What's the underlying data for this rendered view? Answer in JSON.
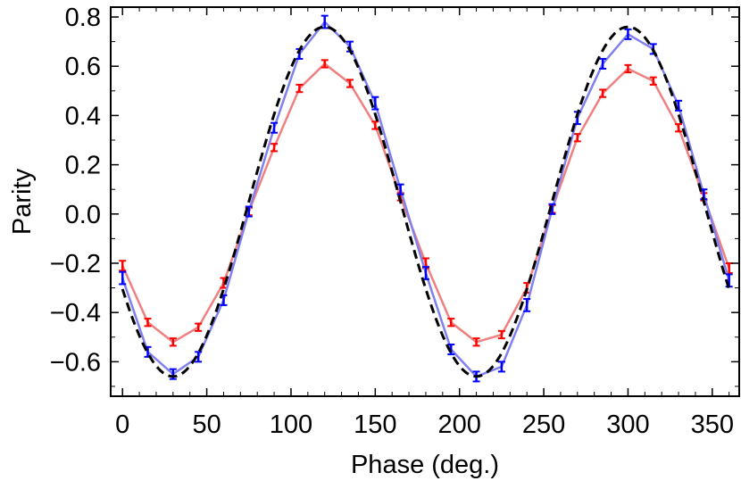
{
  "chart_data": {
    "type": "line",
    "title": "",
    "xlabel": "Phase (deg.)",
    "ylabel": "Parity",
    "xlim": [
      -7,
      366
    ],
    "ylim": [
      -0.74,
      0.84
    ],
    "xticks": [
      0,
      50,
      100,
      150,
      200,
      250,
      300,
      350
    ],
    "yticks": [
      -0.6,
      -0.4,
      -0.2,
      0.0,
      0.2,
      0.4,
      0.6,
      0.8
    ],
    "ytick_labels": [
      "−0.6",
      "−0.4",
      "−0.2",
      "0.0",
      "0.2",
      "0.4",
      "0.6",
      "0.8"
    ],
    "xtick_labels": [
      "0",
      "50",
      "100",
      "150",
      "200",
      "250",
      "300",
      "350"
    ],
    "grid": false,
    "legend": "none",
    "series": [
      {
        "color": "#ff0000",
        "line_color": "#f08080",
        "style": "line+errorbars",
        "x": [
          0,
          15,
          30,
          45,
          60,
          75,
          90,
          105,
          120,
          135,
          150,
          165,
          180,
          195,
          210,
          225,
          240,
          255,
          270,
          285,
          300,
          315,
          330,
          345,
          360
        ],
        "y": [
          -0.21,
          -0.44,
          -0.52,
          -0.46,
          -0.28,
          0.01,
          0.27,
          0.51,
          0.61,
          0.53,
          0.36,
          0.07,
          -0.2,
          -0.44,
          -0.52,
          -0.49,
          -0.3,
          0.02,
          0.31,
          0.49,
          0.59,
          0.54,
          0.35,
          0.07,
          -0.22
        ],
        "err": [
          0.02,
          0.015,
          0.015,
          0.015,
          0.02,
          0.015,
          0.015,
          0.015,
          0.015,
          0.015,
          0.015,
          0.015,
          0.02,
          0.015,
          0.015,
          0.015,
          0.02,
          0.015,
          0.015,
          0.015,
          0.015,
          0.015,
          0.015,
          0.015,
          0.02
        ]
      },
      {
        "color": "#0000ff",
        "line_color": "#8080f0",
        "style": "line+errorbars",
        "x": [
          0,
          15,
          30,
          45,
          60,
          75,
          90,
          105,
          120,
          135,
          150,
          165,
          180,
          195,
          210,
          225,
          240,
          255,
          270,
          285,
          300,
          315,
          330,
          345,
          360
        ],
        "y": [
          -0.26,
          -0.56,
          -0.65,
          -0.58,
          -0.35,
          0.01,
          0.35,
          0.65,
          0.78,
          0.68,
          0.45,
          0.1,
          -0.24,
          -0.55,
          -0.66,
          -0.62,
          -0.37,
          0.02,
          0.39,
          0.61,
          0.73,
          0.67,
          0.44,
          0.08,
          -0.27
        ],
        "err": [
          0.025,
          0.02,
          0.02,
          0.02,
          0.02,
          0.02,
          0.02,
          0.02,
          0.025,
          0.02,
          0.025,
          0.02,
          0.025,
          0.02,
          0.02,
          0.02,
          0.025,
          0.02,
          0.025,
          0.02,
          0.02,
          0.02,
          0.02,
          0.02,
          0.025
        ]
      },
      {
        "color": "#000000",
        "style": "dashed",
        "function": "0.05 + 0.71*cos(2*(x-120) deg)"
      }
    ]
  }
}
